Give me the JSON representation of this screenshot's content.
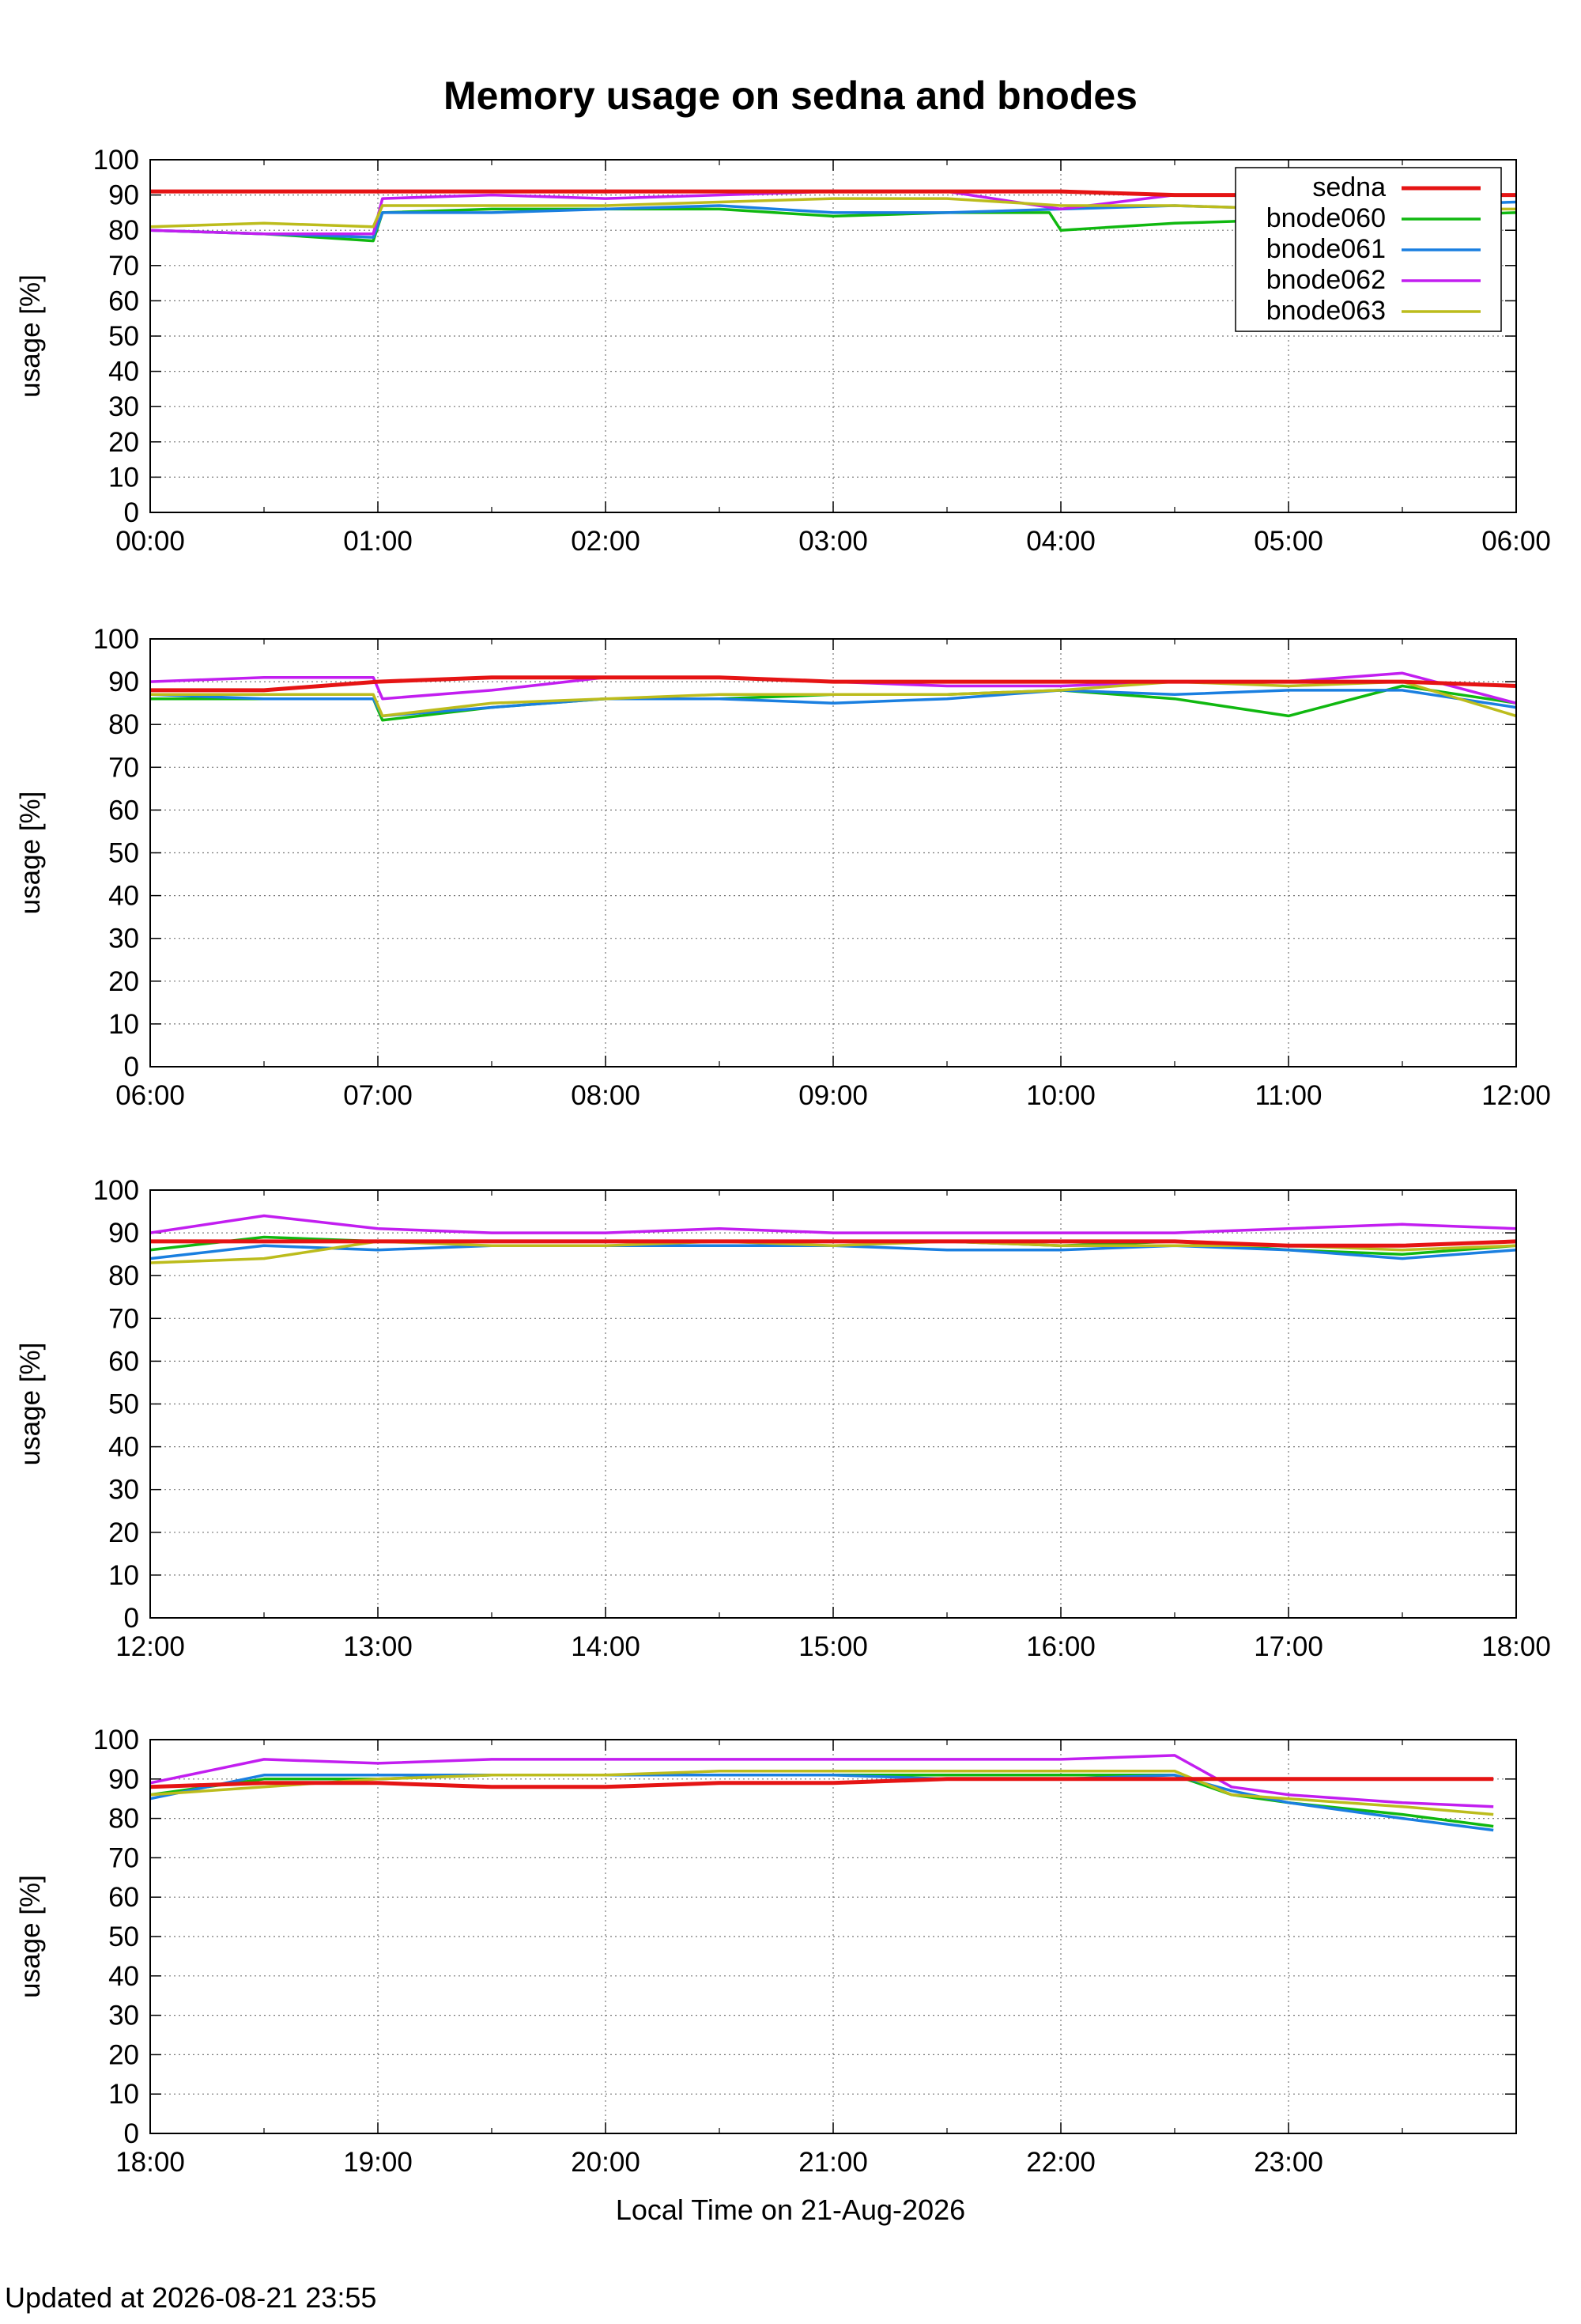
{
  "chart_data": {
    "type": "line",
    "title": "Memory usage on sedna and bnodes",
    "xlabel": "Local Time on 21-Aug-2026",
    "ylabel": "usage [%]",
    "ylim": [
      0,
      100
    ],
    "yticks": [
      "0",
      "10",
      "20",
      "30",
      "40",
      "50",
      "60",
      "70",
      "80",
      "90",
      "100"
    ],
    "grid": true,
    "legend_position": "top-right",
    "series_info": [
      {
        "name": "sedna",
        "color": "#e51414"
      },
      {
        "name": "bnode060",
        "color": "#10b810"
      },
      {
        "name": "bnode061",
        "color": "#1a7fe0"
      },
      {
        "name": "bnode062",
        "color": "#c21ef0"
      },
      {
        "name": "bnode063",
        "color": "#bcbc1c"
      }
    ],
    "panels": [
      {
        "xlim_hours": [
          0,
          6
        ],
        "xticks": [
          "00:00",
          "01:00",
          "02:00",
          "03:00",
          "04:00",
          "05:00",
          "06:00"
        ],
        "series": [
          {
            "name": "sedna",
            "x": [
              0,
              0.5,
              1,
              1.5,
              2,
              2.5,
              3,
              3.5,
              4,
              4.5,
              5,
              5.5,
              6
            ],
            "y": [
              91,
              91,
              91,
              91,
              91,
              91,
              91,
              91,
              91,
              90,
              90,
              90,
              90
            ]
          },
          {
            "name": "bnode060",
            "x": [
              0,
              0.5,
              0.98,
              1.02,
              1.5,
              2,
              2.5,
              3,
              3.5,
              3.95,
              4.0,
              4.5,
              5,
              5.5,
              6
            ],
            "y": [
              80,
              79,
              77,
              85,
              86,
              86,
              86,
              84,
              85,
              85,
              80,
              82,
              83,
              84,
              85
            ]
          },
          {
            "name": "bnode061",
            "x": [
              0,
              0.5,
              0.98,
              1.02,
              1.5,
              2,
              2.5,
              3,
              3.5,
              4,
              4.5,
              5,
              5.5,
              6
            ],
            "y": [
              80,
              79,
              78,
              85,
              85,
              86,
              87,
              85,
              85,
              86,
              87,
              86,
              87,
              88
            ]
          },
          {
            "name": "bnode062",
            "x": [
              0,
              0.5,
              0.98,
              1.02,
              1.5,
              2,
              2.5,
              3,
              3.5,
              4,
              4.5,
              5,
              5.5,
              6
            ],
            "y": [
              80,
              79,
              79,
              89,
              90,
              89,
              90,
              91,
              91,
              86,
              90,
              90,
              89,
              90
            ]
          },
          {
            "name": "bnode063",
            "x": [
              0,
              0.5,
              0.98,
              1.02,
              1.5,
              2,
              2.5,
              3,
              3.5,
              4,
              4.5,
              5,
              5.5,
              6
            ],
            "y": [
              81,
              82,
              81,
              87,
              87,
              87,
              88,
              89,
              89,
              87,
              87,
              86,
              86,
              86
            ]
          }
        ]
      },
      {
        "xlim_hours": [
          6,
          12
        ],
        "xticks": [
          "06:00",
          "07:00",
          "08:00",
          "09:00",
          "10:00",
          "11:00",
          "12:00"
        ],
        "series": [
          {
            "name": "sedna",
            "x": [
              6,
              6.5,
              7,
              7.5,
              8,
              8.5,
              9,
              9.5,
              10,
              10.5,
              11,
              11.5,
              12
            ],
            "y": [
              88,
              88,
              90,
              91,
              91,
              91,
              90,
              90,
              90,
              90,
              90,
              90,
              89
            ]
          },
          {
            "name": "bnode060",
            "x": [
              6,
              6.5,
              6.98,
              7.02,
              7.5,
              8,
              8.5,
              9,
              9.5,
              10,
              10.5,
              11,
              11.5,
              12
            ],
            "y": [
              86,
              86,
              86,
              81,
              84,
              86,
              86,
              87,
              87,
              88,
              86,
              82,
              89,
              85
            ]
          },
          {
            "name": "bnode061",
            "x": [
              6,
              6.5,
              6.98,
              7.02,
              7.5,
              8,
              8.5,
              9,
              9.5,
              10,
              10.5,
              11,
              11.5,
              12
            ],
            "y": [
              87,
              86,
              86,
              82,
              84,
              86,
              86,
              85,
              86,
              88,
              87,
              88,
              88,
              84
            ]
          },
          {
            "name": "bnode062",
            "x": [
              6,
              6.5,
              6.98,
              7.02,
              7.5,
              8,
              8.5,
              9,
              9.5,
              10,
              10.5,
              11,
              11.5,
              12
            ],
            "y": [
              90,
              91,
              91,
              86,
              88,
              91,
              91,
              90,
              89,
              89,
              90,
              90,
              92,
              85
            ]
          },
          {
            "name": "bnode063",
            "x": [
              6,
              6.5,
              6.98,
              7.02,
              7.5,
              8,
              8.5,
              9,
              9.5,
              10,
              10.5,
              11,
              11.5,
              12
            ],
            "y": [
              87,
              87,
              87,
              82,
              85,
              86,
              87,
              87,
              87,
              88,
              90,
              89,
              90,
              82
            ]
          }
        ]
      },
      {
        "xlim_hours": [
          12,
          18
        ],
        "xticks": [
          "12:00",
          "13:00",
          "14:00",
          "15:00",
          "16:00",
          "17:00",
          "18:00"
        ],
        "series": [
          {
            "name": "sedna",
            "x": [
              12,
              12.5,
              13,
              13.5,
              14,
              14.5,
              15,
              15.5,
              16,
              16.5,
              17,
              17.5,
              18
            ],
            "y": [
              88,
              88,
              88,
              88,
              88,
              88,
              88,
              88,
              88,
              88,
              87,
              87,
              88
            ]
          },
          {
            "name": "bnode060",
            "x": [
              12,
              12.5,
              13,
              13.5,
              14,
              14.5,
              15,
              15.5,
              16,
              16.5,
              17,
              17.5,
              18
            ],
            "y": [
              86,
              89,
              88,
              88,
              88,
              88,
              88,
              88,
              87,
              88,
              86,
              85,
              87
            ]
          },
          {
            "name": "bnode061",
            "x": [
              12,
              12.5,
              13,
              13.5,
              14,
              14.5,
              15,
              15.5,
              16,
              16.5,
              17,
              17.5,
              18
            ],
            "y": [
              84,
              87,
              86,
              87,
              87,
              87,
              87,
              86,
              86,
              87,
              86,
              84,
              86
            ]
          },
          {
            "name": "bnode062",
            "x": [
              12,
              12.5,
              13,
              13.5,
              14,
              14.5,
              15,
              15.5,
              16,
              16.5,
              17,
              17.5,
              18
            ],
            "y": [
              90,
              94,
              91,
              90,
              90,
              91,
              90,
              90,
              90,
              90,
              91,
              92,
              91
            ]
          },
          {
            "name": "bnode063",
            "x": [
              12,
              12.5,
              13,
              13.5,
              14,
              14.5,
              15,
              15.5,
              16,
              16.5,
              17,
              17.5,
              18
            ],
            "y": [
              83,
              84,
              88,
              87,
              87,
              88,
              87,
              88,
              87,
              87,
              87,
              86,
              87
            ]
          }
        ]
      },
      {
        "xlim_hours": [
          18,
          24
        ],
        "xticks": [
          "18:00",
          "19:00",
          "20:00",
          "21:00",
          "22:00",
          "23:00"
        ],
        "series": [
          {
            "name": "sedna",
            "x": [
              18,
              18.5,
              19,
              19.5,
              20,
              20.5,
              21,
              21.5,
              22,
              22.5,
              23,
              23.5,
              23.9
            ],
            "y": [
              88,
              89,
              89,
              88,
              88,
              89,
              89,
              90,
              90,
              90,
              90,
              90,
              90
            ]
          },
          {
            "name": "bnode060",
            "x": [
              18,
              18.5,
              19,
              19.5,
              20,
              20.5,
              21,
              21.5,
              22,
              22.5,
              22.75,
              23,
              23.5,
              23.9
            ],
            "y": [
              86,
              90,
              90,
              91,
              91,
              91,
              91,
              91,
              91,
              91,
              86,
              84,
              81,
              78
            ]
          },
          {
            "name": "bnode061",
            "x": [
              18,
              18.5,
              19,
              19.5,
              20,
              20.5,
              21,
              21.5,
              22,
              22.5,
              22.75,
              23,
              23.5,
              23.9
            ],
            "y": [
              85,
              91,
              91,
              91,
              91,
              91,
              91,
              90,
              90,
              91,
              87,
              84,
              80,
              77
            ]
          },
          {
            "name": "bnode062",
            "x": [
              18,
              18.5,
              19,
              19.5,
              20,
              20.5,
              21,
              21.5,
              22,
              22.5,
              22.75,
              23,
              23.5,
              23.9
            ],
            "y": [
              89,
              95,
              94,
              95,
              95,
              95,
              95,
              95,
              95,
              96,
              88,
              86,
              84,
              83
            ]
          },
          {
            "name": "bnode063",
            "x": [
              18,
              18.5,
              19,
              19.5,
              20,
              20.5,
              21,
              21.5,
              22,
              22.5,
              22.75,
              23,
              23.5,
              23.9
            ],
            "y": [
              86,
              88,
              90,
              91,
              91,
              92,
              92,
              92,
              92,
              92,
              86,
              85,
              83,
              81
            ]
          }
        ]
      }
    ]
  },
  "footer": {
    "text": "Updated at 2026-08-21 23:55"
  }
}
